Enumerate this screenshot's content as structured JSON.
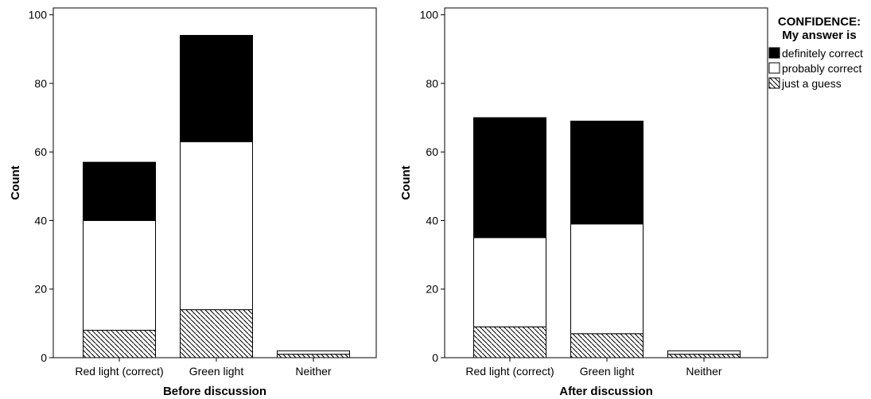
{
  "chart_data": [
    {
      "type": "bar",
      "stacked": true,
      "xlabel": "Before discussion",
      "ylabel": "Count",
      "ylim": [
        0,
        102
      ],
      "yticks": [
        0,
        20,
        40,
        60,
        80,
        100
      ],
      "categories": [
        "Red light (correct)",
        "Green light",
        "Neither"
      ],
      "series": [
        {
          "name": "just a guess",
          "values": [
            8,
            14,
            1
          ],
          "fill": "hatch"
        },
        {
          "name": "probably correct",
          "values": [
            32,
            49,
            1
          ],
          "fill": "#ffffff"
        },
        {
          "name": "definitely correct",
          "values": [
            17,
            31,
            0
          ],
          "fill": "#000000"
        }
      ]
    },
    {
      "type": "bar",
      "stacked": true,
      "xlabel": "After discussion",
      "ylabel": "Count",
      "ylim": [
        0,
        102
      ],
      "yticks": [
        0,
        20,
        40,
        60,
        80,
        100
      ],
      "categories": [
        "Red light (correct)",
        "Green light",
        "Neither"
      ],
      "series": [
        {
          "name": "just a guess",
          "values": [
            9,
            7,
            1
          ],
          "fill": "hatch"
        },
        {
          "name": "probably correct",
          "values": [
            26,
            32,
            1
          ],
          "fill": "#ffffff"
        },
        {
          "name": "definitely correct",
          "values": [
            35,
            30,
            0
          ],
          "fill": "#000000"
        }
      ]
    }
  ],
  "legend": {
    "title_line1": "CONFIDENCE:",
    "title_line2": "My answer is",
    "entries": [
      {
        "label": "definitely correct",
        "fill": "#000000"
      },
      {
        "label": "probably correct",
        "fill": "#ffffff"
      },
      {
        "label": "just a guess",
        "fill": "hatch"
      }
    ]
  }
}
